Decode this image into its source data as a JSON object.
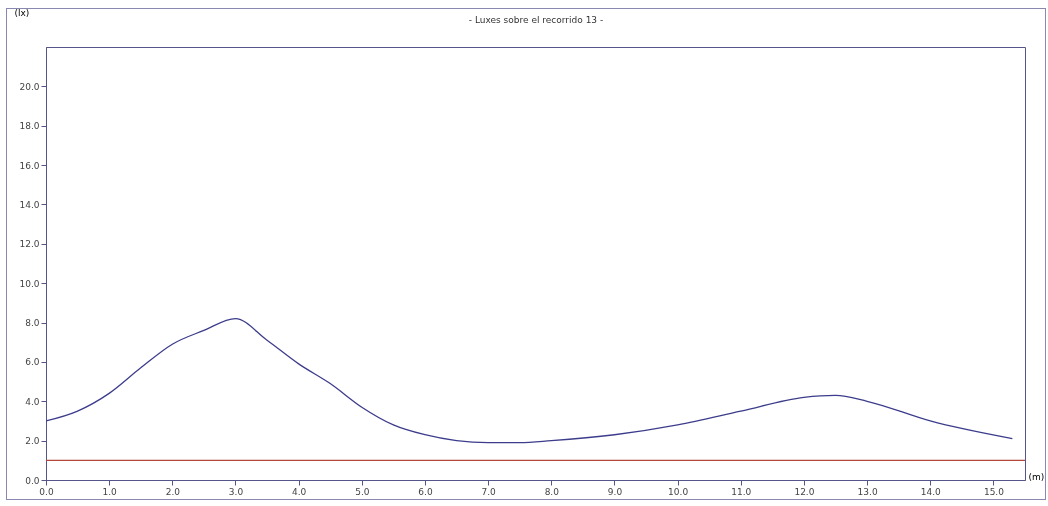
{
  "chart_data": {
    "type": "line",
    "title": "- Luxes sobre el recorrido 13 -",
    "xlabel": "(m)",
    "ylabel": "(lx)",
    "x": [
      0,
      0.5,
      1,
      1.5,
      2,
      2.5,
      3,
      3.5,
      4,
      4.5,
      5,
      5.5,
      6,
      6.5,
      7,
      7.5,
      8,
      9,
      10,
      11,
      12,
      12.5,
      13,
      14,
      15.3
    ],
    "series": [
      {
        "color": "#3c3c8c",
        "values": [
          3.0,
          3.5,
          4.4,
          5.7,
          6.9,
          7.6,
          8.2,
          7.1,
          5.9,
          4.9,
          3.7,
          2.8,
          2.3,
          2.0,
          1.9,
          1.9,
          2.0,
          2.3,
          2.8,
          3.5,
          4.2,
          4.3,
          4.0,
          3.0,
          2.1
        ]
      }
    ],
    "xlim": [
      0,
      15.5
    ],
    "xticks": [
      {
        "value": 0,
        "label": "0.0"
      },
      {
        "value": 1,
        "label": "1.0"
      },
      {
        "value": 2,
        "label": "2.0"
      },
      {
        "value": 3,
        "label": "3.0"
      },
      {
        "value": 4,
        "label": "4.0"
      },
      {
        "value": 5,
        "label": "5.0"
      },
      {
        "value": 6,
        "label": "6.0"
      },
      {
        "value": 7,
        "label": "7.0"
      },
      {
        "value": 8,
        "label": "8.0"
      },
      {
        "value": 9,
        "label": "9.0"
      },
      {
        "value": 10,
        "label": "10.0"
      },
      {
        "value": 11,
        "label": "11.0"
      },
      {
        "value": 12,
        "label": "12.0"
      },
      {
        "value": 13,
        "label": "13.0"
      },
      {
        "value": 14,
        "label": "14.0"
      },
      {
        "value": 15,
        "label": "15.0"
      }
    ],
    "ylim": [
      0,
      22
    ],
    "yticks": [
      {
        "value": 0,
        "label": "0.0"
      },
      {
        "value": 2,
        "label": "2.0"
      },
      {
        "value": 4,
        "label": "4.0"
      },
      {
        "value": 6,
        "label": "6.0"
      },
      {
        "value": 8,
        "label": "8.0"
      },
      {
        "value": 10,
        "label": "10.0"
      },
      {
        "value": 12,
        "label": "12.0"
      },
      {
        "value": 14,
        "label": "14.0"
      },
      {
        "value": 16,
        "label": "16.0"
      },
      {
        "value": 18,
        "label": "18.0"
      },
      {
        "value": 20,
        "label": "20.0"
      }
    ],
    "ref_lines": [
      {
        "axis": "y",
        "value": 1.0,
        "color": "#b5473a"
      }
    ],
    "grid": false,
    "marker": "none",
    "line_style": "solid"
  }
}
